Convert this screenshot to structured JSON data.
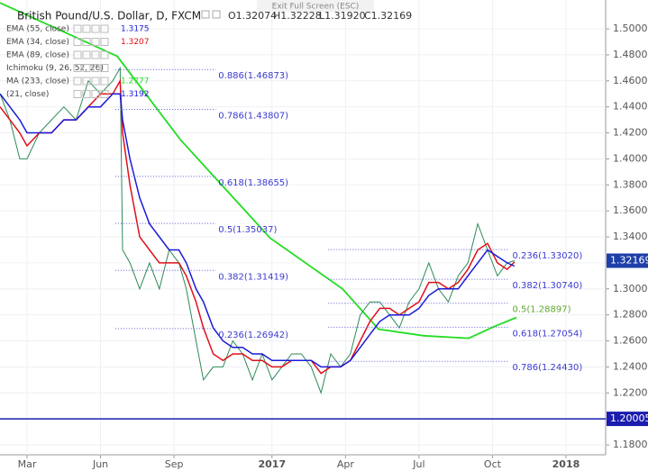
{
  "chart_data": {
    "type": "line",
    "title": "British Pound/U.S. Dollar, D, FXCM",
    "ohlc": [
      "O1.32074",
      "H1.32228",
      "L1.31920",
      "C1.32169"
    ],
    "exit_button": "Exit Full Screen (ESC)",
    "xlim": [
      0.896,
      25.62
    ],
    "xticks": [
      {
        "value": 2,
        "label": "Mar"
      },
      {
        "value": 5,
        "label": "Jun"
      },
      {
        "value": 8,
        "label": "Sep"
      },
      {
        "value": 12,
        "label": "2017"
      },
      {
        "value": 15,
        "label": "Apr"
      },
      {
        "value": 18,
        "label": "Jul"
      },
      {
        "value": 21,
        "label": "Oct"
      },
      {
        "value": 24,
        "label": "2018"
      }
    ],
    "ylim": [
      1.1724,
      1.5222
    ],
    "yticks": [
      {
        "value": 1.18,
        "label": "1.18000"
      },
      {
        "value": 1.2,
        "label": "1.20000"
      },
      {
        "value": 1.22,
        "label": "1.22000"
      },
      {
        "value": 1.24,
        "label": "1.24000"
      },
      {
        "value": 1.26,
        "label": "1.26000"
      },
      {
        "value": 1.28,
        "label": "1.28000"
      },
      {
        "value": 1.3,
        "label": "1.30000"
      },
      {
        "value": 1.32,
        "label": "1.32000"
      },
      {
        "value": 1.34,
        "label": "1.34000"
      },
      {
        "value": 1.36,
        "label": "1.36000"
      },
      {
        "value": 1.38,
        "label": "1.38000"
      },
      {
        "value": 1.4,
        "label": "1.40000"
      },
      {
        "value": 1.42,
        "label": "1.42000"
      },
      {
        "value": 1.44,
        "label": "1.44000"
      },
      {
        "value": 1.46,
        "label": "1.46000"
      },
      {
        "value": 1.48,
        "label": "1.48000"
      },
      {
        "value": 1.5,
        "label": "1.50000"
      }
    ],
    "grid": true,
    "x": [
      0.9,
      1.3,
      1.7,
      2.0,
      2.5,
      3.0,
      3.5,
      4.0,
      4.5,
      5.0,
      5.5,
      5.8,
      5.9,
      6.2,
      6.6,
      7.0,
      7.4,
      7.8,
      8.2,
      8.5,
      8.9,
      9.2,
      9.6,
      10.0,
      10.4,
      10.8,
      11.2,
      11.6,
      12.0,
      12.4,
      12.8,
      13.2,
      13.6,
      14.0,
      14.4,
      14.8,
      15.2,
      15.6,
      16.0,
      16.4,
      16.8,
      17.2,
      17.6,
      18.0,
      18.4,
      18.8,
      19.2,
      19.6,
      20.0,
      20.4,
      20.8,
      21.2,
      21.6,
      21.9
    ],
    "series": [
      {
        "color": "#2e8b57",
        "width": 1,
        "values": [
          1.45,
          1.43,
          1.4,
          1.4,
          1.42,
          1.43,
          1.44,
          1.43,
          1.46,
          1.45,
          1.46,
          1.47,
          1.33,
          1.32,
          1.3,
          1.32,
          1.3,
          1.33,
          1.32,
          1.3,
          1.26,
          1.23,
          1.24,
          1.24,
          1.26,
          1.25,
          1.23,
          1.25,
          1.23,
          1.24,
          1.25,
          1.25,
          1.24,
          1.22,
          1.25,
          1.24,
          1.25,
          1.28,
          1.29,
          1.29,
          1.28,
          1.27,
          1.29,
          1.3,
          1.32,
          1.3,
          1.29,
          1.31,
          1.32,
          1.35,
          1.33,
          1.31,
          1.32,
          1.32169
        ]
      },
      {
        "name": "EMA (34, close)",
        "last": 1.3207,
        "color": "#e0101a",
        "width": 1.5,
        "values": [
          1.44,
          1.43,
          1.42,
          1.41,
          1.42,
          1.42,
          1.43,
          1.43,
          1.44,
          1.45,
          1.45,
          1.46,
          1.42,
          1.38,
          1.34,
          1.33,
          1.32,
          1.32,
          1.32,
          1.31,
          1.29,
          1.27,
          1.25,
          1.245,
          1.25,
          1.25,
          1.245,
          1.245,
          1.24,
          1.24,
          1.245,
          1.245,
          1.245,
          1.235,
          1.24,
          1.24,
          1.245,
          1.26,
          1.275,
          1.285,
          1.285,
          1.28,
          1.285,
          1.29,
          1.305,
          1.305,
          1.3,
          1.305,
          1.315,
          1.33,
          1.335,
          1.32,
          1.315,
          1.3207
        ]
      },
      {
        "name": "EMA (55, close)",
        "last": 1.3175,
        "color": "#1a1ad8",
        "width": 1.5,
        "values": [
          1.45,
          1.44,
          1.43,
          1.42,
          1.42,
          1.42,
          1.43,
          1.43,
          1.44,
          1.44,
          1.45,
          1.45,
          1.43,
          1.4,
          1.37,
          1.35,
          1.34,
          1.33,
          1.33,
          1.32,
          1.3,
          1.29,
          1.27,
          1.26,
          1.255,
          1.255,
          1.25,
          1.25,
          1.245,
          1.245,
          1.245,
          1.245,
          1.245,
          1.24,
          1.24,
          1.24,
          1.245,
          1.255,
          1.265,
          1.275,
          1.28,
          1.28,
          1.28,
          1.285,
          1.295,
          1.3,
          1.3,
          1.3,
          1.31,
          1.32,
          1.33,
          1.325,
          1.32,
          1.3175
        ]
      }
    ],
    "ma_series": {
      "name": "MA (233, close)",
      "last": 1.2777,
      "color": "#22dd22",
      "x": [
        0.9,
        5.68,
        8.25,
        11.93,
        14.88,
        16.35,
        18.19,
        20.03,
        21.06,
        21.98
      ],
      "values": [
        1.52,
        1.479,
        1.415,
        1.339,
        1.3,
        1.269,
        1.264,
        1.262,
        1.271,
        1.278
      ]
    },
    "studies": [
      {
        "name": "EMA (89, close)"
      },
      {
        "name": "Ichimoku (9, 26, 52, 26)"
      },
      {
        "name": "(21, close)",
        "last": 1.3192
      }
    ],
    "hline": {
      "value": 1.20005,
      "label": "1.20005",
      "color": "#1c1cb0"
    },
    "last_price": {
      "value": 1.32169,
      "label": "1.32169",
      "color": "#1e3fa8"
    },
    "fib_left": {
      "x": [
        5.6,
        9.7
      ],
      "levels": [
        {
          "label": "0.886(1.46873)",
          "value": 1.46873
        },
        {
          "label": "0.786(1.43807)",
          "value": 1.43807
        },
        {
          "label": "0.618(1.38655)",
          "value": 1.38655
        },
        {
          "label": "0.5(1.35037)",
          "value": 1.35037
        },
        {
          "label": "0.382(1.31419)",
          "value": 1.31419
        },
        {
          "label": "0.236(1.26942)",
          "value": 1.26942
        }
      ]
    },
    "fib_right": {
      "x": [
        14.3,
        21.7
      ],
      "levels": [
        {
          "label": "0.236(1.33020)",
          "value": 1.3302
        },
        {
          "label": "0.382(1.30740)",
          "value": 1.3074
        },
        {
          "label": "0.5(1.28897)",
          "value": 1.28897
        },
        {
          "label": "0.618(1.27054)",
          "value": 1.27054
        },
        {
          "label": "0.786(1.24430)",
          "value": 1.2443
        }
      ]
    }
  }
}
